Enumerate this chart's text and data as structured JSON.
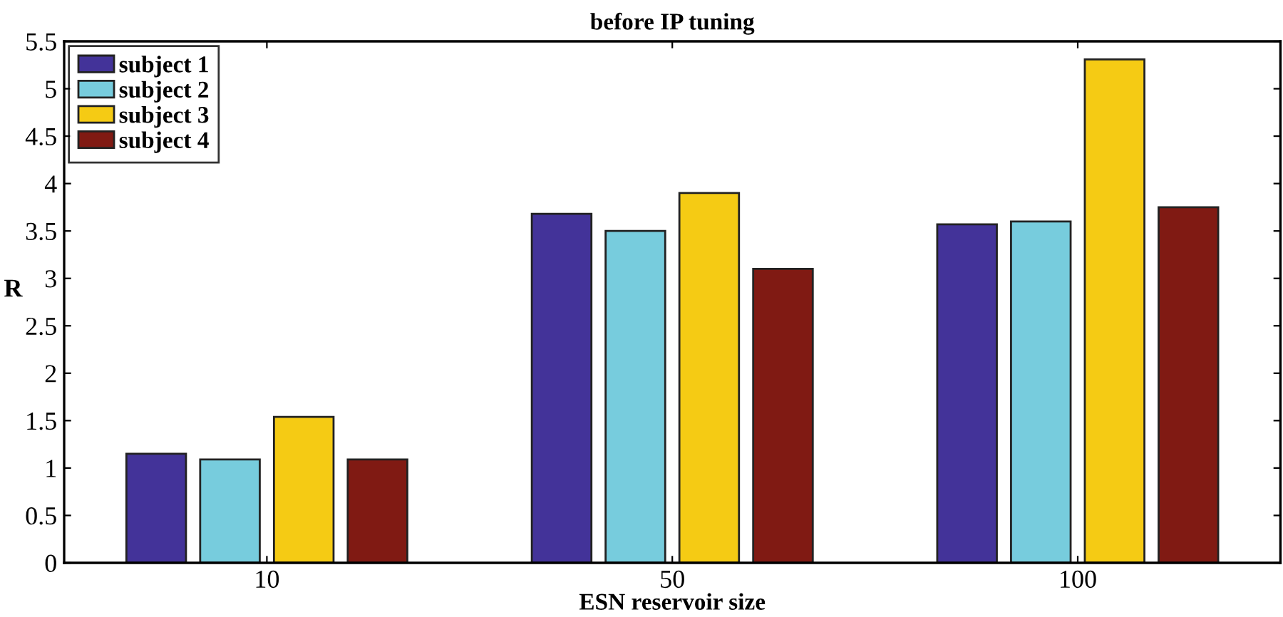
{
  "chart_data": {
    "type": "bar",
    "title": "before IP tuning",
    "xlabel": "ESN reservoir size",
    "ylabel": "R",
    "categories": [
      "10",
      "50",
      "100"
    ],
    "series": [
      {
        "name": "subject 1",
        "color": "#433399",
        "values": [
          1.15,
          3.68,
          3.57
        ]
      },
      {
        "name": "subject 2",
        "color": "#77ccdd",
        "values": [
          1.09,
          3.5,
          3.6
        ]
      },
      {
        "name": "subject 3",
        "color": "#f5cb14",
        "values": [
          1.54,
          3.9,
          5.31
        ]
      },
      {
        "name": "subject 4",
        "color": "#801a13",
        "values": [
          1.09,
          3.1,
          3.75
        ]
      }
    ],
    "ylim": [
      0,
      5.5
    ],
    "yticks": [
      0,
      0.5,
      1,
      1.5,
      2,
      2.5,
      3,
      3.5,
      4,
      4.5,
      5,
      5.5
    ],
    "legend": "top left",
    "grid": false
  }
}
